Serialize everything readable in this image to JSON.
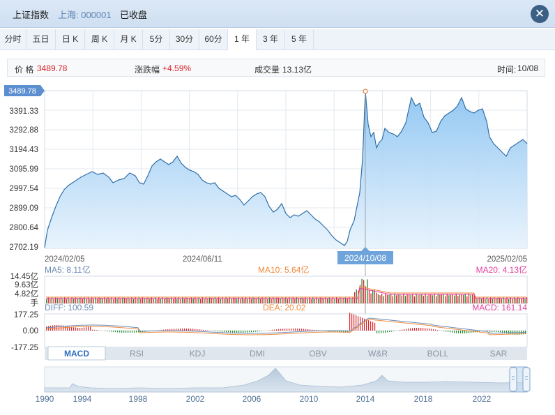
{
  "header": {
    "index_name": "上证指数",
    "market_code": "上海: 000001",
    "status": "已收盘"
  },
  "tabs": [
    {
      "label": "分时",
      "active": false
    },
    {
      "label": "五日",
      "active": false
    },
    {
      "label": "日 K",
      "active": false
    },
    {
      "label": "周 K",
      "active": false
    },
    {
      "label": "月 K",
      "active": false
    },
    {
      "label": "5分",
      "active": false
    },
    {
      "label": "30分",
      "active": false
    },
    {
      "label": "60分",
      "active": false
    },
    {
      "label": "1 年",
      "active": true
    },
    {
      "label": "3 年",
      "active": false
    },
    {
      "label": "5 年",
      "active": false
    }
  ],
  "info": {
    "price_label": "价 格",
    "price_value": "3489.78",
    "change_label": "涨跌幅",
    "change_value": "+4.59%",
    "volume_label": "成交量",
    "volume_value": "13.13亿",
    "time_label": "时间:",
    "time_value": "10/08"
  },
  "price_chart": {
    "current_label": "3489.78",
    "y_ticks": [
      "3391.33",
      "3292.88",
      "3194.43",
      "3095.99",
      "2997.54",
      "2899.09",
      "2800.64",
      "2702.19"
    ],
    "x_labels": [
      "2024/02/05",
      "2024/06/11",
      "2025/02/05"
    ],
    "cursor_date": "2024/10/08"
  },
  "volume_chart": {
    "ma5": "MA5: 8.11亿",
    "ma10": "MA10: 5.64亿",
    "ma20": "MA20: 4.13亿",
    "y_ticks": [
      "14.45亿",
      "9.63亿",
      "4.82亿",
      "手"
    ]
  },
  "macd_chart": {
    "diff": "DIFF: 100.59",
    "dea": "DEA: 20.02",
    "macd": "MACD: 161.14",
    "y_ticks": [
      "177.25",
      "0.00",
      "-177.25"
    ]
  },
  "indicator_tabs": [
    {
      "label": "MACD",
      "active": true
    },
    {
      "label": "RSI",
      "active": false
    },
    {
      "label": "KDJ",
      "active": false
    },
    {
      "label": "DMI",
      "active": false
    },
    {
      "label": "OBV",
      "active": false
    },
    {
      "label": "W&R",
      "active": false
    },
    {
      "label": "BOLL",
      "active": false
    },
    {
      "label": "SAR",
      "active": false
    }
  ],
  "navigator": {
    "years": [
      "1990",
      "1994",
      "1998",
      "2002",
      "2006",
      "2010",
      "2014",
      "2018",
      "2022"
    ]
  },
  "colors": {
    "up": "#d8262c",
    "down": "#1e8a2e",
    "line": "#3a78b5",
    "ma10": "#f08a3c",
    "ma20": "#e040a0"
  },
  "chart_data": {
    "type": "area",
    "x": [
      "2024/02/05",
      "2024/06/11",
      "2024/10/08",
      "2025/02/05"
    ],
    "values": [
      2702.19,
      2960.0,
      3489.78,
      3250.0
    ],
    "ylim": [
      2702.19,
      3489.78
    ]
  }
}
